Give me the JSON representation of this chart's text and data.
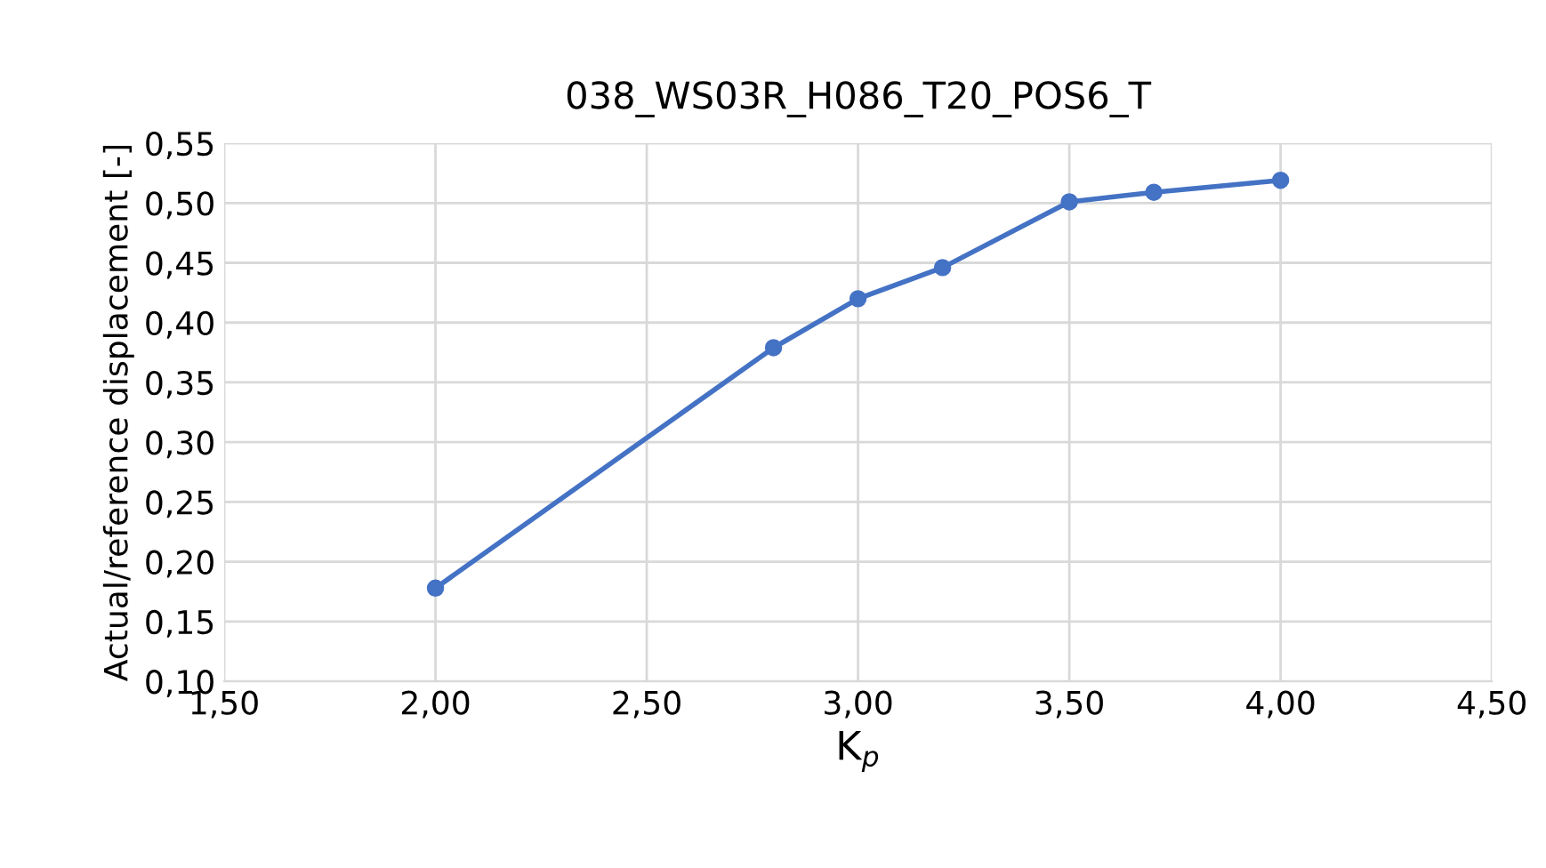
{
  "chart_data": {
    "type": "line",
    "title": "038_WS03R_H086_T20_POS6_T",
    "xlabel": "K$_{p}$",
    "ylabel": "Actual/reference displacement [-]",
    "x": [
      2.0,
      2.8,
      3.0,
      3.2,
      3.5,
      3.7,
      4.0
    ],
    "series": [
      {
        "color": "#4472c4",
        "values": [
          0.178,
          0.379,
          0.42,
          0.446,
          0.501,
          0.509,
          0.519
        ]
      }
    ],
    "xlim": [
      1.5,
      4.5
    ],
    "xticks": [
      {
        "value": 1.5,
        "label": "1,50"
      },
      {
        "value": 2.0,
        "label": "2,00"
      },
      {
        "value": 2.5,
        "label": "2,50"
      },
      {
        "value": 3.0,
        "label": "3,00"
      },
      {
        "value": 3.5,
        "label": "3,50"
      },
      {
        "value": 4.0,
        "label": "4,00"
      },
      {
        "value": 4.5,
        "label": "4,50"
      }
    ],
    "ylim": [
      0.1,
      0.55
    ],
    "yticks": [
      {
        "value": 0.1,
        "label": "0,10"
      },
      {
        "value": 0.15,
        "label": "0,15"
      },
      {
        "value": 0.2,
        "label": "0,20"
      },
      {
        "value": 0.25,
        "label": "0,25"
      },
      {
        "value": 0.3,
        "label": "0,30"
      },
      {
        "value": 0.35,
        "label": "0,35"
      },
      {
        "value": 0.4,
        "label": "0,40"
      },
      {
        "value": 0.45,
        "label": "0,45"
      },
      {
        "value": 0.5,
        "label": "0,50"
      },
      {
        "value": 0.55,
        "label": "0,55"
      }
    ],
    "grid": true,
    "marker": "circle",
    "line_style": "solid",
    "legend": false
  }
}
